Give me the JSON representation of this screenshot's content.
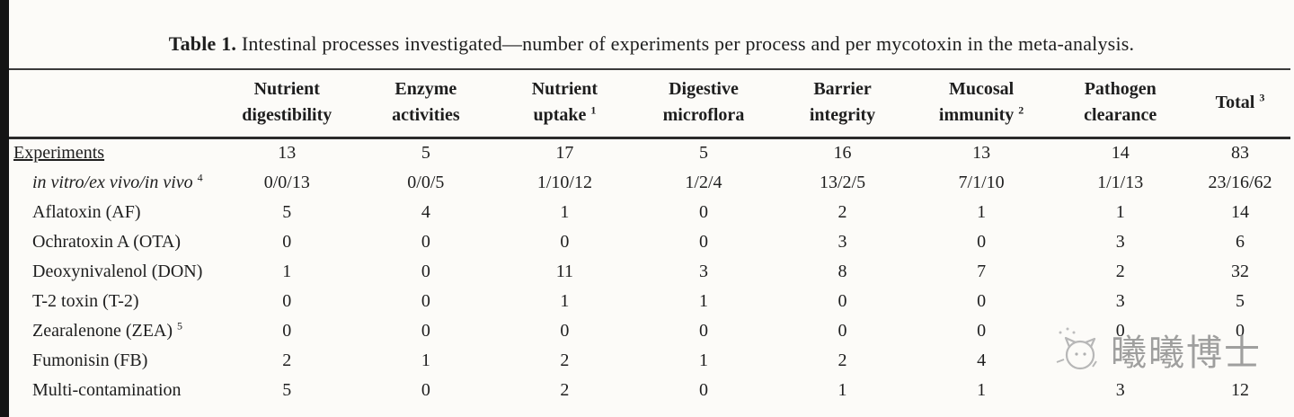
{
  "page": {
    "title_prefix": "Table 1.",
    "title_rest": " Intestinal processes investigated—number of experiments per process and per mycotoxin in the meta-analysis."
  },
  "table": {
    "columns": [
      {
        "line1": "Nutrient",
        "line2": "digestibility",
        "sup": ""
      },
      {
        "line1": "Enzyme",
        "line2": "activities",
        "sup": ""
      },
      {
        "line1": "Nutrient",
        "line2": "uptake",
        "sup": "1"
      },
      {
        "line1": "Digestive",
        "line2": "microflora",
        "sup": ""
      },
      {
        "line1": "Barrier",
        "line2": "integrity",
        "sup": ""
      },
      {
        "line1": "Mucosal",
        "line2": "immunity",
        "sup": "2"
      },
      {
        "line1": "Pathogen",
        "line2": "clearance",
        "sup": ""
      },
      {
        "line1": "Total",
        "line2": "",
        "sup": "3"
      }
    ],
    "rows": [
      {
        "label": "Experiments",
        "sup": "",
        "style": "underline",
        "values": [
          "13",
          "5",
          "17",
          "5",
          "16",
          "13",
          "14",
          "83"
        ]
      },
      {
        "label": "in vitro/ex vivo/in vivo",
        "sup": "4",
        "style": "indent italic",
        "values": [
          "0/0/13",
          "0/0/5",
          "1/10/12",
          "1/2/4",
          "13/2/5",
          "7/1/10",
          "1/1/13",
          "23/16/62"
        ]
      },
      {
        "label": "Aflatoxin (AF)",
        "sup": "",
        "style": "indent",
        "values": [
          "5",
          "4",
          "1",
          "0",
          "2",
          "1",
          "1",
          "14"
        ]
      },
      {
        "label": "Ochratoxin A (OTA)",
        "sup": "",
        "style": "indent",
        "values": [
          "0",
          "0",
          "0",
          "0",
          "3",
          "0",
          "3",
          "6"
        ]
      },
      {
        "label": "Deoxynivalenol (DON)",
        "sup": "",
        "style": "indent",
        "values": [
          "1",
          "0",
          "11",
          "3",
          "8",
          "7",
          "2",
          "32"
        ]
      },
      {
        "label": "T-2 toxin (T-2)",
        "sup": "",
        "style": "indent",
        "values": [
          "0",
          "0",
          "1",
          "1",
          "0",
          "0",
          "3",
          "5"
        ]
      },
      {
        "label": "Zearalenone (ZEA)",
        "sup": "5",
        "style": "indent",
        "values": [
          "0",
          "0",
          "0",
          "0",
          "0",
          "0",
          "0",
          "0"
        ]
      },
      {
        "label": "Fumonisin (FB)",
        "sup": "",
        "style": "indent",
        "values": [
          "2",
          "1",
          "2",
          "1",
          "2",
          "4",
          "",
          ""
        ]
      },
      {
        "label": "Multi-contamination",
        "sup": "",
        "style": "indent",
        "values": [
          "5",
          "0",
          "2",
          "0",
          "1",
          "1",
          "3",
          "12"
        ]
      }
    ]
  },
  "watermark": {
    "logo_icon": "cat-face-logo-icon",
    "text": "曦曦博士"
  },
  "colors": {
    "page_bg": "#fcfbf8",
    "text": "#1e1e1e",
    "rule_top": "#3a3a3a",
    "rule_header": "#2b2b2b",
    "left_bar": "#141414",
    "watermark_gray": "#8f8f8f"
  }
}
